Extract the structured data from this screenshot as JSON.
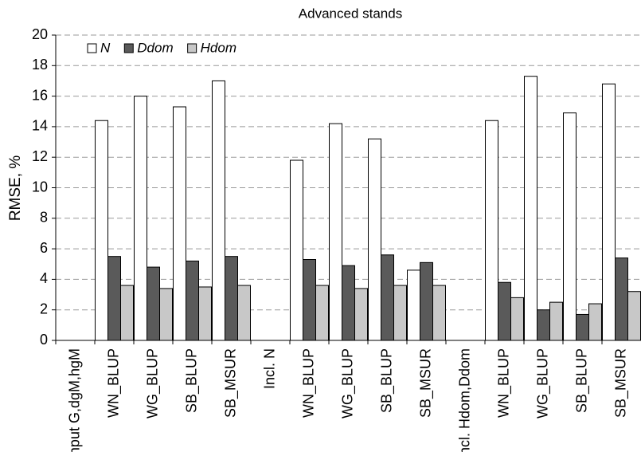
{
  "chart_data": {
    "type": "bar",
    "title": "Advanced stands",
    "y_label": "RMSE, %",
    "categories": [
      "Input G,dgM,hgM",
      "WN_BLUP",
      "WG_BLUP",
      "SB_BLUP",
      "SB_MSUR",
      "Incl. N",
      "WN_BLUP",
      "WG_BLUP",
      "SB_BLUP",
      "SB_MSUR",
      "Incl. Hdom,Ddom",
      "WN_BLUP",
      "WG_BLUP",
      "SB_BLUP",
      "SB_MSUR"
    ],
    "series": [
      {
        "name": "N",
        "color": "#ffffff",
        "values": [
          null,
          14.4,
          16.0,
          15.3,
          17.0,
          null,
          11.8,
          14.2,
          13.2,
          4.6,
          null,
          14.4,
          17.3,
          14.9,
          16.8
        ]
      },
      {
        "name": "Ddom",
        "color": "#5a5a5a",
        "values": [
          null,
          5.5,
          4.8,
          5.2,
          5.5,
          null,
          5.3,
          4.9,
          5.6,
          5.1,
          null,
          3.8,
          2.0,
          1.7,
          5.4
        ]
      },
      {
        "name": "Hdom",
        "color": "#c8c8c8",
        "values": [
          null,
          3.6,
          3.4,
          3.5,
          3.6,
          null,
          3.6,
          3.4,
          3.6,
          3.6,
          null,
          2.8,
          2.5,
          2.4,
          3.2
        ]
      }
    ],
    "ylim": [
      0,
      20
    ],
    "yticks": [
      0,
      2,
      4,
      6,
      8,
      10,
      12,
      14,
      16,
      18,
      20
    ],
    "grid": true,
    "legend": "top-left"
  }
}
